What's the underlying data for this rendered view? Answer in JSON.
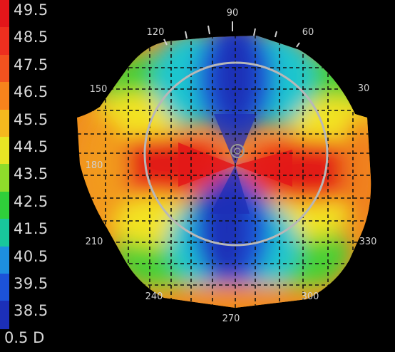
{
  "scale": {
    "ticks": [
      "49.5",
      "48.5",
      "47.5",
      "46.5",
      "45.5",
      "44.5",
      "43.5",
      "42.5",
      "41.5",
      "40.5",
      "39.5",
      "38.5"
    ],
    "colors": [
      "#e3161a",
      "#ee2f1f",
      "#f3521f",
      "#f7831c",
      "#f5b81e",
      "#e8e624",
      "#8fdc2b",
      "#2fcf3a",
      "#18c79c",
      "#1d8fe0",
      "#1c52d8",
      "#1c2fb8"
    ],
    "step": "0.5 D"
  },
  "map": {
    "angles": [
      "90",
      "60",
      "30",
      "120",
      "150",
      "180",
      "210",
      "330",
      "240",
      "300",
      "270"
    ],
    "palette": {
      "red": "#e62020",
      "orange": "#f38a1e",
      "yellow": "#f3e424",
      "green": "#38cf3b",
      "cyan": "#1ec8d6",
      "blue": "#1b58dc",
      "darkblue": "#1b2ab0"
    }
  }
}
